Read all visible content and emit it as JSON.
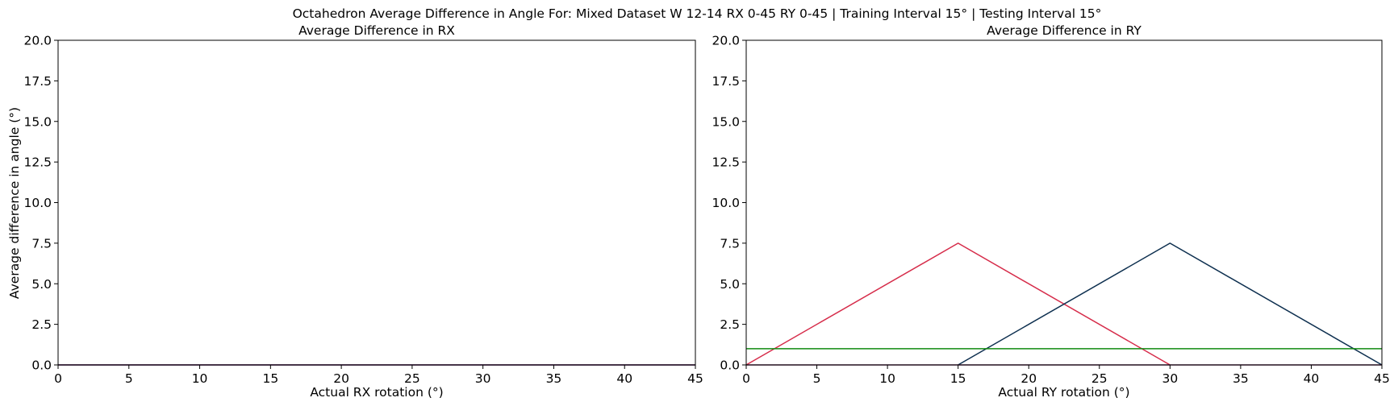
{
  "figure": {
    "title": "Octahedron Average Difference in Angle For: Mixed Dataset W 12-14 RX 0-45 RY 0-45 | Training Interval 15° | Testing Interval 15°"
  },
  "chart_data": [
    {
      "type": "line",
      "title": "Average Difference in RX",
      "xlabel": "Actual RX rotation (°)",
      "ylabel": "Average difference in angle (°)",
      "xlim": [
        0,
        45
      ],
      "ylim": [
        0,
        20
      ],
      "xticks": [
        "0",
        "5",
        "10",
        "15",
        "20",
        "25",
        "30",
        "35",
        "40",
        "45"
      ],
      "yticks": [
        "0.0",
        "2.5",
        "5.0",
        "7.5",
        "10.0",
        "12.5",
        "15.0",
        "17.5",
        "20.0"
      ],
      "grid": false,
      "series": [
        {
          "color": "#1f77b4",
          "x": [
            0,
            15,
            30,
            45
          ],
          "y": [
            0,
            0,
            0,
            0
          ]
        },
        {
          "color": "#8b1a4a",
          "x": [
            0,
            15,
            30,
            45
          ],
          "y": [
            0,
            0,
            0,
            0
          ]
        }
      ]
    },
    {
      "type": "line",
      "title": "Average Difference in RY",
      "xlabel": "Actual RY rotation (°)",
      "ylabel": "",
      "xlim": [
        0,
        45
      ],
      "ylim": [
        0,
        20
      ],
      "xticks": [
        "0",
        "5",
        "10",
        "15",
        "20",
        "25",
        "30",
        "35",
        "40",
        "45"
      ],
      "yticks": [
        "0.0",
        "2.5",
        "5.0",
        "7.5",
        "10.0",
        "12.5",
        "15.0",
        "17.5",
        "20.0"
      ],
      "grid": false,
      "series": [
        {
          "color": "#d62c4a",
          "x": [
            0,
            15,
            30
          ],
          "y": [
            0,
            7.5,
            0
          ]
        },
        {
          "color": "#0d2f4f",
          "x": [
            15,
            30,
            45
          ],
          "y": [
            0,
            7.5,
            0
          ]
        },
        {
          "color": "#118a11",
          "x": [
            0,
            45
          ],
          "y": [
            1,
            1
          ]
        },
        {
          "color": "#6a2a5a",
          "x": [
            0,
            15,
            30,
            45
          ],
          "y": [
            0,
            0,
            0,
            0
          ]
        }
      ]
    }
  ]
}
